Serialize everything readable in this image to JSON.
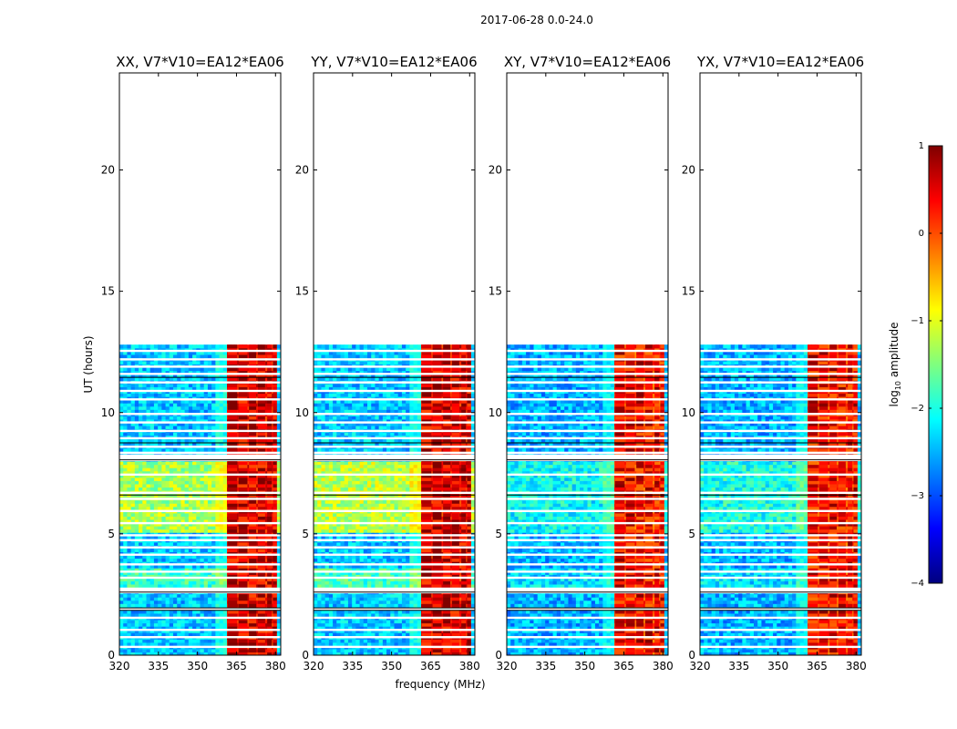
{
  "chart_data": {
    "type": "heatmap",
    "suptitle": "2017-06-28 0.0-24.0",
    "xlabel": "frequency (MHz)",
    "ylabel": "UT (hours)",
    "xlim": [
      320,
      382
    ],
    "ylim": [
      0,
      24
    ],
    "xticks": [
      "320",
      "335",
      "350",
      "365",
      "380"
    ],
    "yticks": [
      "0",
      "5",
      "10",
      "15",
      "20"
    ],
    "data_extent_hours": [
      0,
      12.8
    ],
    "hot_band_mhz": [
      361,
      380
    ],
    "colorbar": {
      "label_prefix": "log",
      "label_sub": "10",
      "label_suffix": " amplitude",
      "range": [
        -4,
        1
      ],
      "ticks": [
        "1",
        "0",
        "−1",
        "−2",
        "−3",
        "−4"
      ],
      "cmap": [
        "#00007f",
        "#0000ff",
        "#007fff",
        "#00ffff",
        "#7fff7f",
        "#ffff00",
        "#ff7f00",
        "#ff0000",
        "#7f0000"
      ]
    },
    "panels": [
      {
        "title": "XX, V7*V10=EA12*EA06",
        "bg_level": -2.4,
        "mid_level": -1.3
      },
      {
        "title": "YY, V7*V10=EA12*EA06",
        "bg_level": -2.4,
        "mid_level": -1.2
      },
      {
        "title": "XY, V7*V10=EA12*EA06",
        "bg_level": -2.5,
        "mid_level": -2.1
      },
      {
        "title": "YX, V7*V10=EA12*EA06",
        "bg_level": -2.5,
        "mid_level": -2.0
      }
    ]
  }
}
